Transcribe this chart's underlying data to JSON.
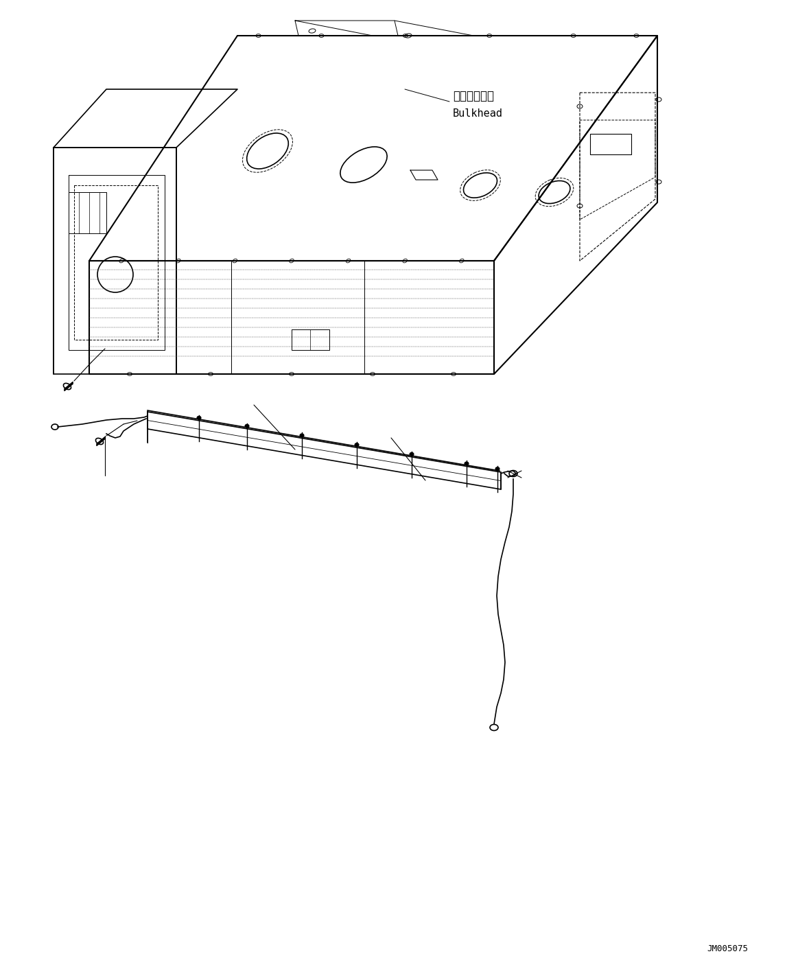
{
  "background_color": "#ffffff",
  "line_color": "#000000",
  "label_japanese": "バルクヘッド",
  "label_english": "Bulkhead",
  "watermark": "JM005075",
  "fig_width": 11.63,
  "fig_height": 14.09,
  "dpi": 100
}
